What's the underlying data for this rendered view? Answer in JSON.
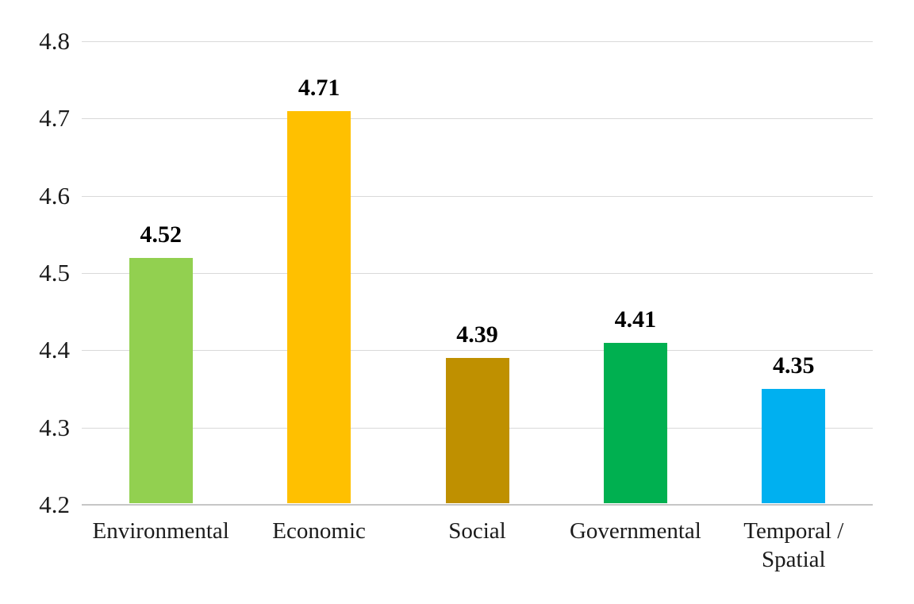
{
  "chart_data": {
    "type": "bar",
    "categories": [
      "Environmental",
      "Economic",
      "Social",
      "Governmental",
      "Temporal / Spatial"
    ],
    "values": [
      4.52,
      4.71,
      4.39,
      4.41,
      4.35
    ],
    "data_labels": [
      "4.52",
      "4.71",
      "4.39",
      "4.41",
      "4.35"
    ],
    "bar_colors": [
      "#92D050",
      "#FFC000",
      "#BF9000",
      "#00B050",
      "#00B0F0"
    ],
    "title": "",
    "xlabel": "",
    "ylabel": "",
    "ylim": [
      4.2,
      4.8
    ],
    "ytick_step": 0.1,
    "ytick_labels": [
      "4.2",
      "4.3",
      "4.4",
      "4.5",
      "4.6",
      "4.7",
      "4.8"
    ],
    "grid": true,
    "legend": "none",
    "gridline_color": "#D9D9D9",
    "axis_line_color": "#C6C6C6",
    "text_color": "#1B1B1B",
    "background_color": "#FFFFFF"
  }
}
